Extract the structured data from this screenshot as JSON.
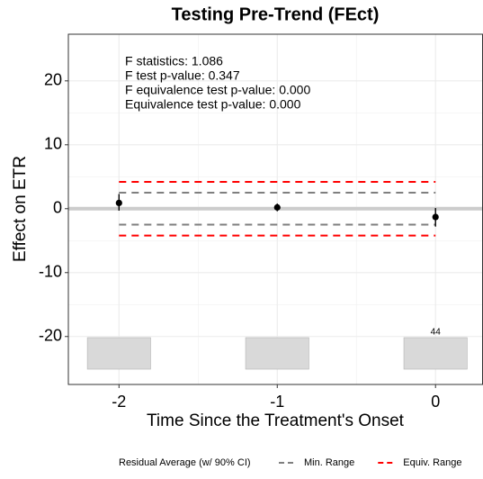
{
  "chart_data": {
    "type": "errorbar",
    "title": "Testing Pre-Trend (FEct)",
    "x_label": "Time Since the Treatment's Onset",
    "y_label": "Effect on ETR",
    "x": [
      -2,
      -1,
      0
    ],
    "series": [
      {
        "name": "Residual Average (w/ 90% CI)",
        "color": "#000000",
        "values": [
          0.9,
          0.2,
          -1.3
        ],
        "ci_lower": [
          -0.3,
          -0.4,
          -2.8
        ],
        "ci_upper": [
          2.3,
          0.8,
          0.1
        ]
      }
    ],
    "reference_lines": [
      {
        "name": "Min. Range",
        "color": "#7f7f7f",
        "values": [
          -2.5,
          2.5
        ]
      },
      {
        "name": "Equiv. Range",
        "color": "#ff0000",
        "values": [
          -4.2,
          4.2
        ]
      }
    ],
    "hline": 0,
    "counts": [
      44,
      44,
      44
    ],
    "count_labels": [
      null,
      null,
      44
    ],
    "annotations": [
      "F statistics: 1.086",
      "F test p-value: 0.347",
      "F equivalence test p-value: 0.000",
      "Equivalence test p-value: 0.000"
    ],
    "xlim": [
      -2.32,
      0.3
    ],
    "ylim": [
      -27.5,
      27.3
    ],
    "xticks": [
      -2,
      -1,
      0
    ],
    "yticks": [
      -20,
      -10,
      0,
      10,
      20
    ],
    "grid": true,
    "legend_position": "bottom"
  }
}
